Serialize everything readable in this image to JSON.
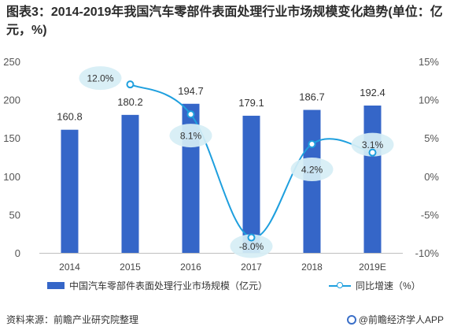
{
  "title": "图表3：2014-2019年我国汽车零部件表面处理行业市场规模变化趋势(单位：亿元，%)",
  "source": "资料来源：前瞻产业研究院整理",
  "brand": "@前瞻经济学人APP",
  "colors": {
    "bar": "#3566C8",
    "line": "#1E9FDE",
    "label_bg": "#D6EEF5",
    "axis": "#BFBFBF"
  },
  "chart_data": {
    "type": "bar",
    "categories": [
      "2014",
      "2015",
      "2016",
      "2017",
      "2018",
      "2019E"
    ],
    "series": [
      {
        "name": "中国汽车零部件表面处理行业市场规模（亿元）",
        "type": "bar",
        "axis": "left",
        "values": [
          160.8,
          180.2,
          194.7,
          179.1,
          186.7,
          192.4
        ],
        "labels": [
          "160.8",
          "180.2",
          "194.7",
          "179.1",
          "186.7",
          "192.4"
        ]
      },
      {
        "name": "同比增速（%）",
        "type": "line",
        "axis": "right",
        "values": [
          null,
          12.0,
          8.1,
          -8.0,
          4.2,
          3.1
        ],
        "labels": [
          "",
          "12.0%",
          "8.1%",
          "-8.0%",
          "4.2%",
          "3.1%"
        ]
      }
    ],
    "y_left": {
      "min": 0,
      "max": 250,
      "ticks": [
        "0",
        "50",
        "100",
        "150",
        "200",
        "250"
      ],
      "values": [
        0,
        50,
        100,
        150,
        200,
        250
      ]
    },
    "y_right": {
      "min": -10,
      "max": 15,
      "ticks": [
        "-10%",
        "-5%",
        "0%",
        "5%",
        "10%",
        "15%"
      ],
      "values": [
        -10,
        -5,
        0,
        5,
        10,
        15
      ]
    },
    "grid": false,
    "legend": "bottom"
  }
}
